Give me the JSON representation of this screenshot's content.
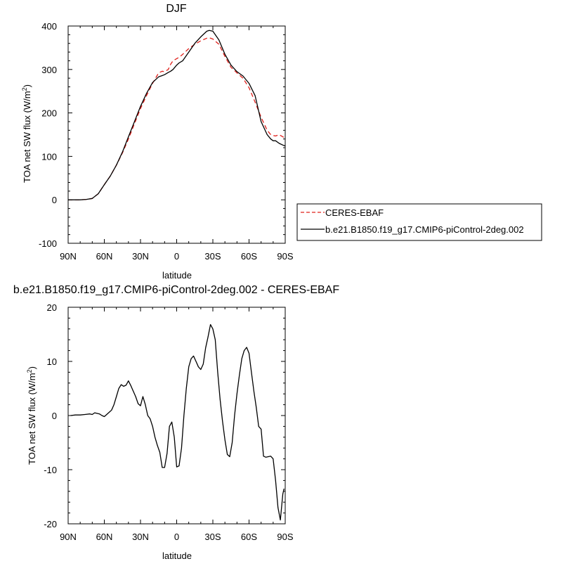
{
  "colors": {
    "ceres": "#e0201b",
    "model": "#000000",
    "axes": "#000000",
    "background": "#ffffff"
  },
  "chart_data": [
    {
      "type": "line",
      "title": "DJF",
      "xlabel": "latitude",
      "ylabel": "TOA net SW flux (W/m²)",
      "ylabel_parts": {
        "main": "TOA net SW flux (W/m",
        "sup": "2",
        "tail": ")"
      },
      "xlim": [
        -90,
        90
      ],
      "ylim": [
        -100,
        400
      ],
      "xticks": [
        -90,
        -60,
        -30,
        0,
        30,
        60,
        90
      ],
      "xticklabels": [
        "90N",
        "60N",
        "30N",
        "0",
        "30S",
        "60S",
        "90S"
      ],
      "yticks": [
        -100,
        0,
        100,
        200,
        300,
        400
      ],
      "yticklabels": [
        "-100",
        "0",
        "100",
        "200",
        "300",
        "400"
      ],
      "grid": false,
      "legend_position": "right",
      "series": [
        {
          "name": "CERES-EBAF",
          "style": "dashed",
          "color": "#e0201b",
          "x": [
            -90,
            -85,
            -80,
            -75,
            -70,
            -65,
            -60,
            -55,
            -50,
            -45,
            -40,
            -35,
            -30,
            -25,
            -20,
            -15,
            -12,
            -10,
            -7,
            -5,
            -3,
            0,
            2,
            5,
            10,
            15,
            20,
            25,
            27,
            30,
            35,
            40,
            45,
            50,
            55,
            60,
            65,
            70,
            75,
            78,
            80,
            82,
            85,
            88,
            90
          ],
          "y": [
            0,
            0,
            0,
            1,
            3,
            14,
            35,
            55,
            80,
            108,
            140,
            175,
            210,
            240,
            268,
            292,
            296,
            295,
            300,
            312,
            320,
            325,
            328,
            335,
            348,
            358,
            366,
            372,
            373,
            370,
            358,
            330,
            305,
            292,
            280,
            258,
            225,
            190,
            160,
            150,
            148,
            147,
            150,
            145,
            142
          ]
        },
        {
          "name": "b.e21.B1850.f19_g17.CMIP6-piControl-2deg.002",
          "style": "solid",
          "color": "#000000",
          "x": [
            -90,
            -85,
            -80,
            -75,
            -70,
            -65,
            -60,
            -55,
            -50,
            -45,
            -40,
            -35,
            -30,
            -25,
            -20,
            -15,
            -12,
            -10,
            -7,
            -5,
            -3,
            0,
            2,
            5,
            10,
            15,
            20,
            25,
            27,
            30,
            35,
            40,
            45,
            50,
            55,
            60,
            65,
            70,
            75,
            78,
            80,
            82,
            85,
            88,
            90
          ],
          "y": [
            0,
            0,
            0,
            1,
            3,
            14,
            35,
            55,
            80,
            110,
            145,
            180,
            215,
            245,
            270,
            283,
            286,
            288,
            293,
            296,
            300,
            310,
            315,
            320,
            340,
            360,
            375,
            388,
            390,
            388,
            368,
            335,
            310,
            295,
            285,
            268,
            240,
            180,
            150,
            140,
            136,
            136,
            130,
            126,
            124
          ]
        }
      ]
    },
    {
      "type": "line",
      "title": "b.e21.B1850.f19_g17.CMIP6-piControl-2deg.002 - CERES-EBAF",
      "xlabel": "latitude",
      "ylabel": "TOA net SW flux (W/m²)",
      "ylabel_parts": {
        "main": "TOA net SW flux (W/m",
        "sup": "2",
        "tail": ")"
      },
      "xlim": [
        -90,
        90
      ],
      "ylim": [
        -20,
        20
      ],
      "xticks": [
        -90,
        -60,
        -30,
        0,
        30,
        60,
        90
      ],
      "xticklabels": [
        "90N",
        "60N",
        "30N",
        "0",
        "30S",
        "60S",
        "90S"
      ],
      "yticks": [
        -20,
        -10,
        0,
        10,
        20
      ],
      "yticklabels": [
        "-20",
        "-10",
        "0",
        "10",
        "20"
      ],
      "grid": false,
      "series": [
        {
          "name": "",
          "style": "solid",
          "color": "#000000",
          "x": [
            -88,
            -84,
            -80,
            -76,
            -72,
            -70,
            -68,
            -64,
            -62,
            -60,
            -58,
            -56,
            -54,
            -52,
            -50,
            -48,
            -46,
            -44,
            -42,
            -40,
            -38,
            -36,
            -34,
            -32,
            -30,
            -28,
            -26,
            -24,
            -22,
            -20,
            -18,
            -16,
            -14,
            -12,
            -10,
            -8,
            -6,
            -4,
            -2,
            0,
            2,
            4,
            6,
            8,
            10,
            12,
            14,
            16,
            18,
            20,
            22,
            24,
            26,
            28,
            30,
            32,
            34,
            36,
            38,
            40,
            42,
            44,
            46,
            48,
            50,
            52,
            54,
            56,
            58,
            60,
            62,
            64,
            66,
            68,
            70,
            72,
            74,
            76,
            78,
            80,
            82,
            84,
            86,
            88,
            89
          ],
          "y": [
            0,
            0.1,
            0.1,
            0.2,
            0.3,
            0.2,
            0.5,
            0.3,
            0,
            -0.2,
            0.2,
            0.6,
            1.0,
            2.0,
            3.5,
            5.0,
            5.7,
            5.4,
            5.6,
            6.4,
            5.5,
            4.5,
            3.5,
            2.2,
            1.8,
            3.5,
            2.0,
            0,
            -0.6,
            -2.0,
            -4.0,
            -5.5,
            -6.8,
            -9.6,
            -9.6,
            -7.0,
            -2.0,
            -1.2,
            -4.0,
            -9.5,
            -9.3,
            -6.0,
            0,
            5.0,
            9.0,
            10.5,
            11.0,
            10.0,
            9.0,
            8.5,
            9.5,
            12.5,
            14.5,
            16.8,
            16.0,
            14.0,
            8.0,
            3.0,
            -1.0,
            -4.5,
            -7.2,
            -7.6,
            -5.0,
            0,
            4.0,
            7.5,
            10.5,
            12.0,
            12.6,
            11.5,
            8.0,
            4.5,
            1.5,
            -2.0,
            -2.5,
            -7.5,
            -7.7,
            -7.6,
            -7.5,
            -8.0,
            -12.0,
            -17.0,
            -19.3,
            -14.5,
            -13.5
          ]
        }
      ]
    }
  ]
}
